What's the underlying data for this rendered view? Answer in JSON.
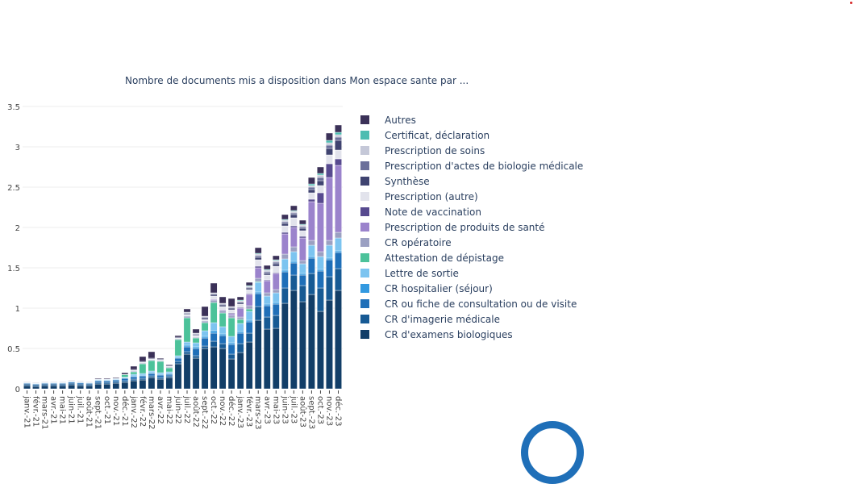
{
  "chart_data": {
    "type": "bar",
    "stacked": true,
    "title": "Nombre de documents mis a disposition dans Mon espace sante par ...",
    "xlabel": "",
    "ylabel": "",
    "ylim": [
      0,
      3.5
    ],
    "yticks": [
      0,
      0.5,
      1,
      1.5,
      2,
      2.5,
      3,
      3.5
    ],
    "grid": true,
    "legend_placement": "right",
    "categories": [
      "janv.-21",
      "févr.-21",
      "mars-21",
      "avr.-21",
      "mai-21",
      "juin-21",
      "juil.-21",
      "août-21",
      "sept.-21",
      "oct.-21",
      "nov.-21",
      "déc.-21",
      "janv.-22",
      "févr.-22",
      "mars-22",
      "avr.-22",
      "mai-22",
      "juin-22",
      "juil.-22",
      "août-22",
      "sept.-22",
      "oct.-22",
      "nov.-22",
      "déc.-22",
      "janv.-23",
      "févr.-23",
      "mars-23",
      "avr.-23",
      "mai-23",
      "juin-23",
      "juil.-23",
      "août-23",
      "sept.-23",
      "oct.-23",
      "nov.-23",
      "déc.-23"
    ],
    "series": [
      {
        "name": "CR d'examens biologiques",
        "color": "#123e68",
        "values": [
          0.04,
          0.03,
          0.04,
          0.04,
          0.04,
          0.05,
          0.04,
          0.04,
          0.06,
          0.06,
          0.07,
          0.08,
          0.1,
          0.11,
          0.14,
          0.12,
          0.14,
          0.31,
          0.43,
          0.38,
          0.5,
          0.52,
          0.5,
          0.37,
          0.45,
          0.58,
          0.85,
          0.74,
          0.75,
          1.06,
          1.22,
          1.08,
          1.17,
          0.96,
          1.1,
          1.22
        ]
      },
      {
        "name": "CR d'imagerie médicale",
        "color": "#175a94",
        "values": [
          0.02,
          0.02,
          0.02,
          0.02,
          0.02,
          0.02,
          0.02,
          0.02,
          0.02,
          0.02,
          0.02,
          0.02,
          0.02,
          0.02,
          0.02,
          0.02,
          0.02,
          0.03,
          0.03,
          0.03,
          0.03,
          0.07,
          0.06,
          0.06,
          0.11,
          0.11,
          0.17,
          0.15,
          0.16,
          0.19,
          0.19,
          0.2,
          0.26,
          0.29,
          0.29,
          0.27
        ]
      },
      {
        "name": "CR ou fiche de consultation ou de visite",
        "color": "#1f6fb8",
        "values": [
          0.01,
          0.01,
          0.01,
          0.01,
          0.01,
          0.015,
          0.015,
          0.01,
          0.02,
          0.02,
          0.02,
          0.03,
          0.03,
          0.03,
          0.03,
          0.03,
          0.02,
          0.04,
          0.06,
          0.09,
          0.1,
          0.1,
          0.1,
          0.12,
          0.13,
          0.14,
          0.16,
          0.14,
          0.14,
          0.2,
          0.15,
          0.13,
          0.19,
          0.21,
          0.21,
          0.2
        ]
      },
      {
        "name": "CR hospitalier (séjour)",
        "color": "#3399e0",
        "values": [
          0.005,
          0.005,
          0.005,
          0.005,
          0.005,
          0.005,
          0.005,
          0.005,
          0.005,
          0.005,
          0.005,
          0.005,
          0.01,
          0.01,
          0.01,
          0.01,
          0.01,
          0.01,
          0.02,
          0.02,
          0.02,
          0.03,
          0.02,
          0.02,
          0.02,
          0.02,
          0.02,
          0.02,
          0.02,
          0.02,
          0.02,
          0.02,
          0.02,
          0.02,
          0.02,
          0.02
        ]
      },
      {
        "name": "Lettre de sortie",
        "color": "#7cc4f0",
        "values": [
          0.005,
          0.005,
          0.005,
          0.005,
          0.005,
          0.005,
          0.005,
          0.005,
          0.01,
          0.01,
          0.01,
          0.01,
          0.02,
          0.02,
          0.02,
          0.02,
          0.02,
          0.02,
          0.04,
          0.05,
          0.07,
          0.1,
          0.09,
          0.08,
          0.1,
          0.11,
          0.12,
          0.1,
          0.12,
          0.14,
          0.12,
          0.12,
          0.14,
          0.16,
          0.16,
          0.16
        ]
      },
      {
        "name": "Attestation de dépistage",
        "color": "#4cc29a",
        "values": [
          0,
          0,
          0,
          0,
          0,
          0,
          0,
          0,
          0,
          0,
          0,
          0.03,
          0.03,
          0.12,
          0.13,
          0.14,
          0.05,
          0.2,
          0.3,
          0.06,
          0.1,
          0.25,
          0.17,
          0.23,
          0.05,
          0.03,
          0.01,
          0,
          0,
          0,
          0,
          0,
          0,
          0,
          0,
          0
        ]
      },
      {
        "name": "CR opératoire",
        "color": "#9ba0c2",
        "values": [
          0,
          0,
          0,
          0,
          0,
          0,
          0,
          0,
          0,
          0,
          0,
          0,
          0.01,
          0.01,
          0.01,
          0.01,
          0.01,
          0.01,
          0.02,
          0.01,
          0.02,
          0.03,
          0.03,
          0.03,
          0.03,
          0.04,
          0.04,
          0.04,
          0.04,
          0.06,
          0.06,
          0.04,
          0.06,
          0.06,
          0.06,
          0.07
        ]
      },
      {
        "name": "Prescription de produits de santé",
        "color": "#9b83cc",
        "values": [
          0,
          0,
          0,
          0,
          0,
          0,
          0,
          0,
          0,
          0,
          0,
          0,
          0,
          0,
          0,
          0,
          0,
          0,
          0,
          0,
          0,
          0.01,
          0.01,
          0.02,
          0.11,
          0.14,
          0.13,
          0.15,
          0.2,
          0.25,
          0.24,
          0.28,
          0.48,
          0.6,
          0.78,
          0.83
        ]
      },
      {
        "name": "Note de vaccination",
        "color": "#574a8f",
        "values": [
          0,
          0,
          0,
          0,
          0,
          0,
          0,
          0,
          0,
          0,
          0,
          0,
          0,
          0,
          0,
          0,
          0,
          0,
          0,
          0,
          0,
          0,
          0,
          0.01,
          0.01,
          0.01,
          0.02,
          0.01,
          0.01,
          0.02,
          0.02,
          0.02,
          0.03,
          0.13,
          0.17,
          0.08
        ]
      },
      {
        "name": "Prescription (autre)",
        "color": "#e2e3ec",
        "values": [
          0.005,
          0.005,
          0.005,
          0.005,
          0.005,
          0.005,
          0.005,
          0.005,
          0.005,
          0.005,
          0.005,
          0.005,
          0.01,
          0.01,
          0.01,
          0.01,
          0.01,
          0.01,
          0.02,
          0.02,
          0.02,
          0.04,
          0.04,
          0.04,
          0.04,
          0.05,
          0.08,
          0.06,
          0.08,
          0.08,
          0.1,
          0.07,
          0.08,
          0.09,
          0.11,
          0.11
        ]
      },
      {
        "name": "Synthèse",
        "color": "#3f4370",
        "values": [
          0,
          0,
          0,
          0,
          0,
          0,
          0,
          0,
          0,
          0,
          0,
          0,
          0.01,
          0.01,
          0.01,
          0.01,
          0.01,
          0.01,
          0.01,
          0.01,
          0.02,
          0.02,
          0.02,
          0.02,
          0.02,
          0.02,
          0.03,
          0.02,
          0.03,
          0.03,
          0.04,
          0.03,
          0.04,
          0.06,
          0.08,
          0.12
        ]
      },
      {
        "name": "Prescription d'actes de biologie médicale",
        "color": "#6b6f9a",
        "values": [
          0,
          0,
          0,
          0,
          0,
          0,
          0,
          0,
          0,
          0,
          0,
          0,
          0,
          0,
          0,
          0,
          0,
          0,
          0.01,
          0.01,
          0.01,
          0.01,
          0.01,
          0.01,
          0.01,
          0.01,
          0.02,
          0.02,
          0.02,
          0.02,
          0.02,
          0.02,
          0.03,
          0.04,
          0.04,
          0.04
        ]
      },
      {
        "name": "Prescription de soins",
        "color": "#c5c8d8",
        "values": [
          0,
          0,
          0,
          0,
          0,
          0,
          0,
          0,
          0,
          0,
          0,
          0,
          0,
          0,
          0,
          0,
          0,
          0,
          0.01,
          0.01,
          0.01,
          0.01,
          0.01,
          0.01,
          0.01,
          0.01,
          0.02,
          0.02,
          0.02,
          0.02,
          0.02,
          0.02,
          0.02,
          0.03,
          0.03,
          0.03
        ]
      },
      {
        "name": "Certificat, déclaration",
        "color": "#4dbdb1",
        "values": [
          0,
          0,
          0,
          0,
          0,
          0,
          0,
          0,
          0,
          0,
          0,
          0,
          0,
          0,
          0,
          0,
          0,
          0,
          0,
          0,
          0,
          0,
          0,
          0,
          0.01,
          0.01,
          0.01,
          0.01,
          0.01,
          0.01,
          0.01,
          0.01,
          0.02,
          0.02,
          0.03,
          0.03
        ]
      },
      {
        "name": "Autres",
        "color": "#3b3158",
        "values": [
          0.005,
          0.005,
          0.005,
          0.005,
          0.005,
          0.005,
          0.005,
          0.005,
          0.01,
          0.01,
          0.01,
          0.02,
          0.04,
          0.06,
          0.08,
          0.01,
          0.01,
          0.02,
          0.04,
          0.05,
          0.12,
          0.12,
          0.08,
          0.1,
          0.04,
          0.04,
          0.07,
          0.05,
          0.05,
          0.06,
          0.06,
          0.05,
          0.08,
          0.08,
          0.09,
          0.09
        ]
      }
    ]
  }
}
